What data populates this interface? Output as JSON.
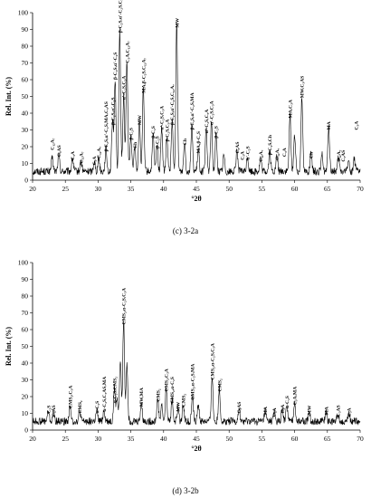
{
  "chart_data": [
    {
      "type": "line",
      "caption": "(c) 3-2a",
      "xlabel": "°2θ",
      "ylabel": "Rel. Int. (%)",
      "xlim": [
        20,
        70
      ],
      "ylim": [
        0,
        100
      ],
      "xticks": [
        20,
        25,
        30,
        35,
        40,
        45,
        50,
        55,
        60,
        65,
        70
      ],
      "yticks": [
        0,
        10,
        20,
        30,
        40,
        50,
        60,
        70,
        80,
        90,
        100
      ],
      "peaks": [
        {
          "x": 23.0,
          "y": 8
        },
        {
          "x": 24.0,
          "y": 10
        },
        {
          "x": 26.1,
          "y": 8
        },
        {
          "x": 27.4,
          "y": 6
        },
        {
          "x": 29.4,
          "y": 6
        },
        {
          "x": 30.1,
          "y": 8
        },
        {
          "x": 31.2,
          "y": 14
        },
        {
          "x": 32.2,
          "y": 30
        },
        {
          "x": 32.6,
          "y": 55
        },
        {
          "x": 33.3,
          "y": 85
        },
        {
          "x": 33.9,
          "y": 45
        },
        {
          "x": 34.4,
          "y": 66
        },
        {
          "x": 35.0,
          "y": 21
        },
        {
          "x": 35.6,
          "y": 16
        },
        {
          "x": 36.3,
          "y": 30
        },
        {
          "x": 36.9,
          "y": 49
        },
        {
          "x": 38.4,
          "y": 22
        },
        {
          "x": 39.0,
          "y": 16
        },
        {
          "x": 39.7,
          "y": 27
        },
        {
          "x": 40.5,
          "y": 20
        },
        {
          "x": 41.3,
          "y": 30
        },
        {
          "x": 42.0,
          "y": 88
        },
        {
          "x": 43.2,
          "y": 18
        },
        {
          "x": 44.3,
          "y": 27
        },
        {
          "x": 45.3,
          "y": 13
        },
        {
          "x": 46.5,
          "y": 25
        },
        {
          "x": 47.3,
          "y": 30
        },
        {
          "x": 48.0,
          "y": 22
        },
        {
          "x": 49.2,
          "y": 10
        },
        {
          "x": 51.2,
          "y": 13
        },
        {
          "x": 52.8,
          "y": 9
        },
        {
          "x": 54.8,
          "y": 8
        },
        {
          "x": 56.2,
          "y": 12
        },
        {
          "x": 57.3,
          "y": 9
        },
        {
          "x": 59.3,
          "y": 34
        },
        {
          "x": 60.0,
          "y": 22
        },
        {
          "x": 61.1,
          "y": 46
        },
        {
          "x": 62.5,
          "y": 10
        },
        {
          "x": 64.2,
          "y": 10
        },
        {
          "x": 65.2,
          "y": 27
        },
        {
          "x": 66.7,
          "y": 8
        },
        {
          "x": 68.2,
          "y": 7
        },
        {
          "x": 69.1,
          "y": 8
        }
      ],
      "labels": [
        {
          "x": 23.0,
          "y": 18,
          "text": "C₁₂A₇"
        },
        {
          "x": 24.0,
          "y": 14,
          "text": "C₃AS"
        },
        {
          "x": 26.1,
          "y": 12,
          "text": "C₃A"
        },
        {
          "x": 27.4,
          "y": 10,
          "text": "C₁₂A₇"
        },
        {
          "x": 29.4,
          "y": 9,
          "text": "C₃A"
        },
        {
          "x": 30.1,
          "y": 13,
          "text": "C₁₂A₇"
        },
        {
          "x": 31.2,
          "y": 17,
          "text": "β-C₂S,α'-C₂S,MA,C₃AS"
        },
        {
          "x": 32.2,
          "y": 33,
          "text": "β-C₂S,α'-C₂S"
        },
        {
          "x": 32.6,
          "y": 60,
          "text": "β-C₂S,α'-C₂S"
        },
        {
          "x": 33.3,
          "y": 88,
          "text": "β-C₂S,α'-C₂S,C₃A"
        },
        {
          "x": 33.9,
          "y": 48,
          "text": "α'-C₂S,C₃A"
        },
        {
          "x": 34.4,
          "y": 70,
          "text": "C₃A,C₁₂A₇"
        },
        {
          "x": 35.0,
          "y": 24,
          "text": "β-C₂S"
        },
        {
          "x": 35.6,
          "y": 19,
          "text": "Ch"
        },
        {
          "x": 36.3,
          "y": 33,
          "text": "MW"
        },
        {
          "x": 36.9,
          "y": 52,
          "text": "MA,β-C₂S,C₁₂A₇"
        },
        {
          "x": 38.4,
          "y": 25,
          "text": "β-C₂S"
        },
        {
          "x": 39.0,
          "y": 19,
          "text": "β-C₂S"
        },
        {
          "x": 39.7,
          "y": 30,
          "text": "α'-C₂S,C₃A"
        },
        {
          "x": 40.5,
          "y": 23,
          "text": "β-C₂S,C₃A"
        },
        {
          "x": 41.3,
          "y": 33,
          "text": "β-C₂S,α'-C₂S,C₁₂A₇"
        },
        {
          "x": 42.0,
          "y": 91,
          "text": "MW"
        },
        {
          "x": 43.2,
          "y": 21,
          "text": "Ch"
        },
        {
          "x": 44.3,
          "y": 30,
          "text": "β-C₂S,α'-C₂S,MA"
        },
        {
          "x": 45.3,
          "y": 16,
          "text": "MA,β-C₂S"
        },
        {
          "x": 46.5,
          "y": 28,
          "text": "α'-C₂S,C₃A"
        },
        {
          "x": 47.3,
          "y": 33,
          "text": "α'-C₂S,C₃A"
        },
        {
          "x": 48.0,
          "y": 25,
          "text": "β-C₂S"
        },
        {
          "x": 51.2,
          "y": 16,
          "text": "C₃AS"
        },
        {
          "x": 52.0,
          "y": 12,
          "text": "C₃A"
        },
        {
          "x": 52.8,
          "y": 12,
          "text": "α'-C₂S"
        },
        {
          "x": 54.8,
          "y": 11,
          "text": "C₁₂A₇"
        },
        {
          "x": 56.2,
          "y": 15,
          "text": "β-C₂S,Ch"
        },
        {
          "x": 57.3,
          "y": 12,
          "text": "C₁₂A₇"
        },
        {
          "x": 58.4,
          "y": 14,
          "text": "C₃A"
        },
        {
          "x": 59.3,
          "y": 37,
          "text": "MA,C₃A"
        },
        {
          "x": 61.1,
          "y": 49,
          "text": "MW,C₃AS"
        },
        {
          "x": 62.5,
          "y": 13,
          "text": "Ch"
        },
        {
          "x": 65.2,
          "y": 30,
          "text": "MA"
        },
        {
          "x": 66.7,
          "y": 11,
          "text": "C₁₂A₇"
        },
        {
          "x": 67.4,
          "y": 11,
          "text": "C₃AS"
        },
        {
          "x": 69.4,
          "y": 30,
          "text": "C₃A"
        }
      ]
    },
    {
      "type": "line",
      "caption": "(d) 3-2b",
      "xlabel": "°2θ",
      "ylabel": "Rel. Int. (%)",
      "xlim": [
        20,
        70
      ],
      "ylim": [
        0,
        100
      ],
      "xticks": [
        20,
        25,
        30,
        35,
        40,
        45,
        50,
        55,
        60,
        65,
        70
      ],
      "yticks": [
        0,
        10,
        20,
        30,
        40,
        50,
        60,
        70,
        80,
        90,
        100
      ],
      "peaks": [
        {
          "x": 22.4,
          "y": 6
        },
        {
          "x": 23.2,
          "y": 5
        },
        {
          "x": 25.7,
          "y": 9
        },
        {
          "x": 27.2,
          "y": 6
        },
        {
          "x": 29.8,
          "y": 6
        },
        {
          "x": 30.9,
          "y": 7
        },
        {
          "x": 32.5,
          "y": 20
        },
        {
          "x": 32.9,
          "y": 14
        },
        {
          "x": 33.4,
          "y": 37
        },
        {
          "x": 33.9,
          "y": 60
        },
        {
          "x": 34.4,
          "y": 35
        },
        {
          "x": 36.6,
          "y": 11
        },
        {
          "x": 39.1,
          "y": 14
        },
        {
          "x": 39.7,
          "y": 10
        },
        {
          "x": 40.4,
          "y": 20
        },
        {
          "x": 41.3,
          "y": 13
        },
        {
          "x": 42.2,
          "y": 8
        },
        {
          "x": 43.0,
          "y": 11
        },
        {
          "x": 44.4,
          "y": 15
        },
        {
          "x": 45.3,
          "y": 10
        },
        {
          "x": 47.4,
          "y": 27
        },
        {
          "x": 48.5,
          "y": 20
        },
        {
          "x": 51.5,
          "y": 7
        },
        {
          "x": 55.5,
          "y": 6
        },
        {
          "x": 56.9,
          "y": 5
        },
        {
          "x": 58.1,
          "y": 7
        },
        {
          "x": 58.8,
          "y": 10
        },
        {
          "x": 60.0,
          "y": 12
        },
        {
          "x": 62.2,
          "y": 6
        },
        {
          "x": 64.8,
          "y": 6
        },
        {
          "x": 66.6,
          "y": 5
        },
        {
          "x": 68.3,
          "y": 5
        }
      ],
      "labels": [
        {
          "x": 22.4,
          "y": 10,
          "text": "C₂S"
        },
        {
          "x": 23.2,
          "y": 8,
          "text": "C₃AS"
        },
        {
          "x": 25.7,
          "y": 13,
          "text": "CMS₂,C₃A"
        },
        {
          "x": 27.2,
          "y": 10,
          "text": "CMS₂"
        },
        {
          "x": 29.8,
          "y": 10,
          "text": "α-C₂S"
        },
        {
          "x": 30.9,
          "y": 11,
          "text": "α-C₂S,C₃AS,MA"
        },
        {
          "x": 32.5,
          "y": 16,
          "text": "α-C₂S,CMS₂"
        },
        {
          "x": 33.9,
          "y": 63,
          "text": "CMS₂,α-C₂S,C₃A"
        },
        {
          "x": 36.6,
          "y": 14,
          "text": "MW,MA"
        },
        {
          "x": 39.1,
          "y": 17,
          "text": "CMS₂"
        },
        {
          "x": 40.4,
          "y": 23,
          "text": "CMS₂,C₃A"
        },
        {
          "x": 41.3,
          "y": 16,
          "text": "CMS₂,α-C₂S"
        },
        {
          "x": 42.2,
          "y": 11,
          "text": "MW"
        },
        {
          "x": 43.0,
          "y": 14,
          "text": "CMS₂"
        },
        {
          "x": 44.4,
          "y": 18,
          "text": "CMS₂,α-C₂S,MA"
        },
        {
          "x": 47.4,
          "y": 30,
          "text": "CMS₂,α-C₂S,C₃A"
        },
        {
          "x": 48.5,
          "y": 23,
          "text": "CMS₂"
        },
        {
          "x": 51.5,
          "y": 10,
          "text": "C₃AS"
        },
        {
          "x": 55.5,
          "y": 9,
          "text": "MA"
        },
        {
          "x": 56.9,
          "y": 8,
          "text": "C₃A"
        },
        {
          "x": 58.1,
          "y": 10,
          "text": "C₃A"
        },
        {
          "x": 58.8,
          "y": 13,
          "text": "α-C₂S"
        },
        {
          "x": 60.0,
          "y": 15,
          "text": "C₃A,MA"
        },
        {
          "x": 62.2,
          "y": 9,
          "text": "MW"
        },
        {
          "x": 64.8,
          "y": 9,
          "text": "MA"
        },
        {
          "x": 66.6,
          "y": 8,
          "text": "C₃AS"
        },
        {
          "x": 68.3,
          "y": 8,
          "text": "C₃A"
        }
      ]
    }
  ]
}
